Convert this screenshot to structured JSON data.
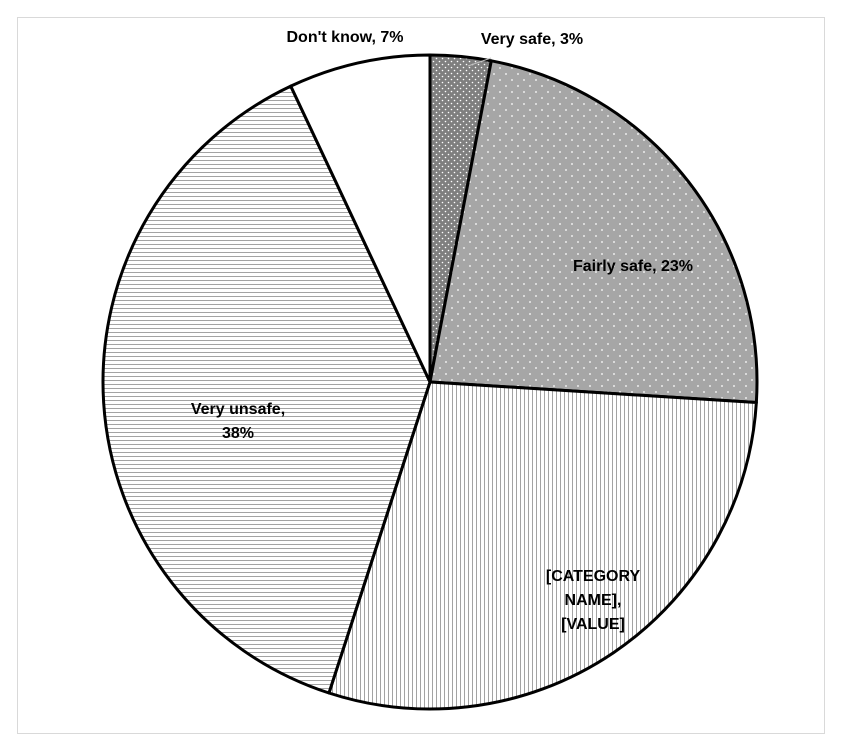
{
  "chart_data": {
    "type": "pie",
    "title": "",
    "start_angle_deg": 0,
    "direction": "clockwise",
    "slices": [
      {
        "label": "Very safe",
        "value": 3,
        "display": "Very safe, 3%",
        "pattern": "small-dots",
        "color": "#7f7f7f"
      },
      {
        "label": "Fairly safe",
        "value": 23,
        "display": "Fairly safe, 23%",
        "pattern": "dots",
        "color": "#a6a6a6"
      },
      {
        "label": "[CATEGORY NAME]",
        "value": 29,
        "display": "[CATEGORY NAME], [VALUE]",
        "display_lines": [
          "[CATEGORY",
          "NAME],",
          "[VALUE]"
        ],
        "pattern": "vertical-lines",
        "color": "#ffffff"
      },
      {
        "label": "Very unsafe",
        "value": 38,
        "display": "Very unsafe, 38%",
        "display_lines": [
          "Very unsafe,",
          "38%"
        ],
        "pattern": "horizontal-lines",
        "color": "#ffffff"
      },
      {
        "label": "Don't know",
        "value": 7,
        "display": "Don't know, 7%",
        "pattern": "none",
        "color": "#ffffff"
      }
    ]
  }
}
